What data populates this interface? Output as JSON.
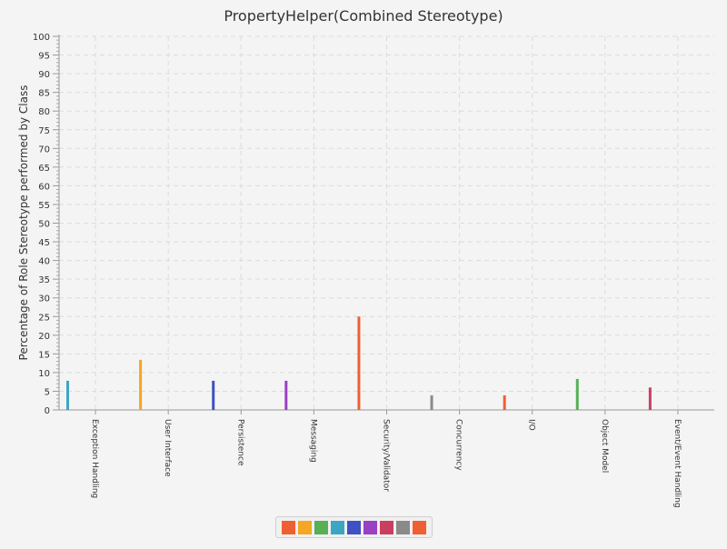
{
  "chart_data": {
    "type": "bar",
    "title": "PropertyHelper(Combined Stereotype)",
    "xlabel": "",
    "ylabel": "Percentage of Role Stereotype performed by Class",
    "ylim": [
      0,
      100
    ],
    "ytick_step": 5,
    "grid": true,
    "legend_position": "bottom-center",
    "categories": [
      "Exception Handling",
      "User Interface",
      "Persistence",
      "Messaging",
      "Security/Validator",
      "Concurrency",
      "I/O",
      "Object Model",
      "Event/Event Handling"
    ],
    "values": [
      7.8,
      13.4,
      7.8,
      7.8,
      25.0,
      3.9,
      3.9,
      8.3,
      6.0
    ],
    "colors": [
      "#3da5c4",
      "#f5a623",
      "#3f51c4",
      "#9b3fc4",
      "#ef5f34",
      "#8a8a8a",
      "#ef5f34",
      "#55b056",
      "#c93f62"
    ],
    "legend_colors": [
      "#ef5f34",
      "#f5a623",
      "#55b056",
      "#3da5c4",
      "#3f51c4",
      "#9b3fc4",
      "#c93f62",
      "#8a8a8a",
      "#ef5f34"
    ]
  }
}
